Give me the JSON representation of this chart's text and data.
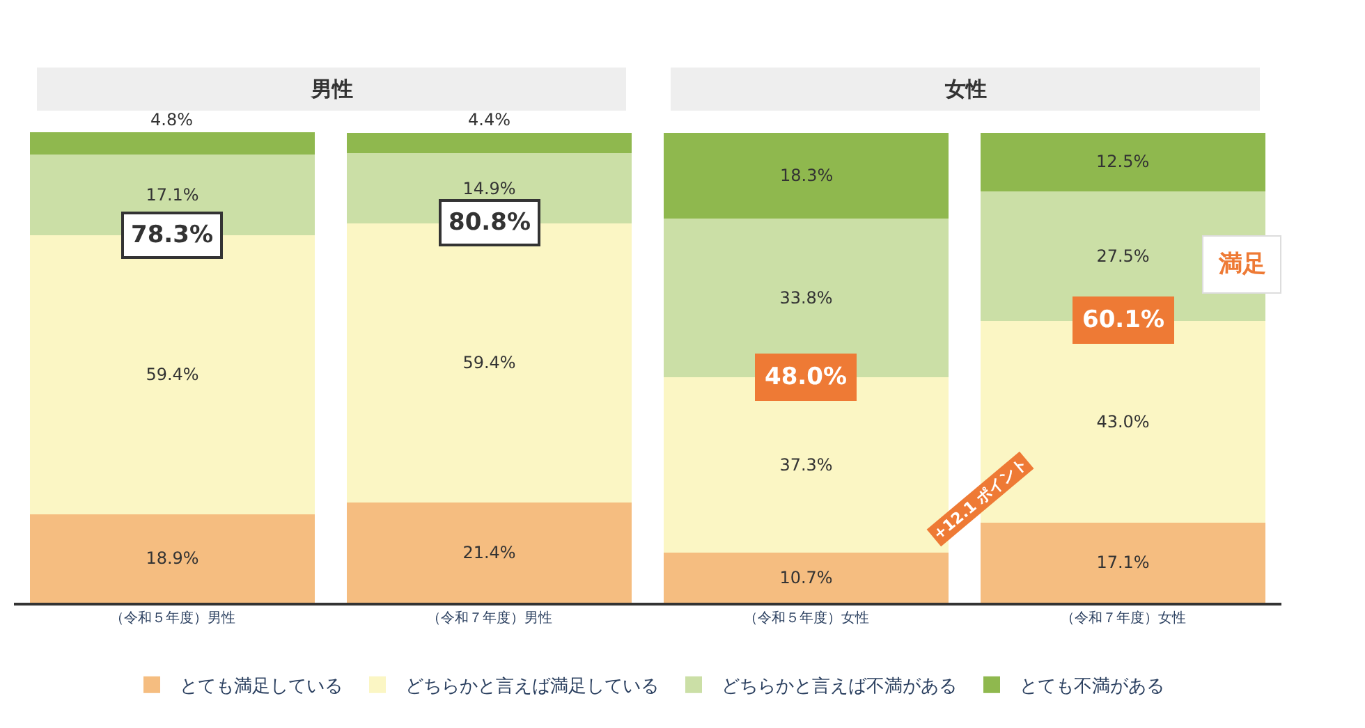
{
  "chart_data": {
    "type": "bar",
    "stacked": true,
    "categories": [
      "（令和５年度）男性",
      "（令和７年度）男性",
      "（令和５年度）女性",
      "（令和７年度）女性"
    ],
    "series": [
      {
        "name": "とても満足している",
        "color": "#f5bd80",
        "values": [
          18.9,
          21.4,
          10.7,
          17.1
        ],
        "value_labels": [
          "18.9%",
          "21.4%",
          "10.7%",
          "17.1%"
        ]
      },
      {
        "name": "どちらかと言えば満足している",
        "color": "#fbf6c4",
        "values": [
          59.4,
          59.4,
          37.3,
          43.0
        ],
        "value_labels": [
          "59.4%",
          "59.4%",
          "37.3%",
          "43.0%"
        ]
      },
      {
        "name": "どちらかと言えば不満がある",
        "color": "#cbdfa6",
        "values": [
          17.1,
          14.9,
          33.8,
          27.5
        ],
        "value_labels": [
          "17.1%",
          "14.9%",
          "33.8%",
          "27.5%"
        ]
      },
      {
        "name": "とても不満がある",
        "color": "#8fb84e",
        "values": [
          4.8,
          4.4,
          18.3,
          12.5
        ],
        "value_labels": [
          "4.8%",
          "4.4%",
          "18.3%",
          "12.5%"
        ]
      }
    ],
    "legend": "bottom",
    "annotations": [
      {
        "text": "78.3%",
        "x": "（令和５年度）男性",
        "y": 78.3
      },
      {
        "text": "80.8%",
        "x": "（令和７年度）男性",
        "y": 80.8
      },
      {
        "text": "48.0%",
        "x": "（令和５年度）女性",
        "y": 48.0
      },
      {
        "text": "60.1%",
        "x": "（令和７年度）女性",
        "y": 60.1
      },
      "+12.1 ポイント",
      "満足",
      "男性",
      "女性"
    ]
  }
}
